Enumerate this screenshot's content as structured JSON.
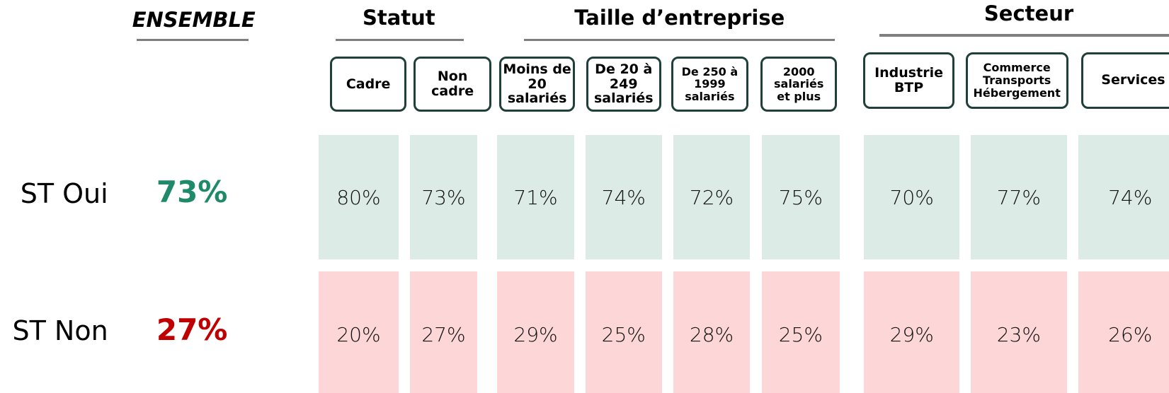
{
  "ensemble": {
    "label": "ENSEMBLE"
  },
  "groups": [
    {
      "title": "Statut",
      "columns": [
        "Cadre",
        "Non\ncadre"
      ]
    },
    {
      "title": "Taille d’entreprise",
      "columns": [
        "Moins de\n20\nsalariés",
        "De 20 à\n249\nsalariés",
        "De 250 à\n1999\nsalariés",
        "2000\nsalariés\net plus"
      ]
    },
    {
      "title": "Secteur",
      "columns": [
        "Industrie\nBTP",
        "Commerce\nTransports\nHébergement",
        "Services"
      ]
    }
  ],
  "rows": [
    {
      "label": "ST Oui",
      "ensemble": "73%",
      "values": [
        "80%",
        "73%",
        "71%",
        "74%",
        "72%",
        "75%",
        "70%",
        "77%",
        "74%"
      ]
    },
    {
      "label": "ST Non",
      "ensemble": "27%",
      "values": [
        "20%",
        "27%",
        "29%",
        "25%",
        "28%",
        "25%",
        "29%",
        "23%",
        "26%"
      ]
    }
  ]
}
